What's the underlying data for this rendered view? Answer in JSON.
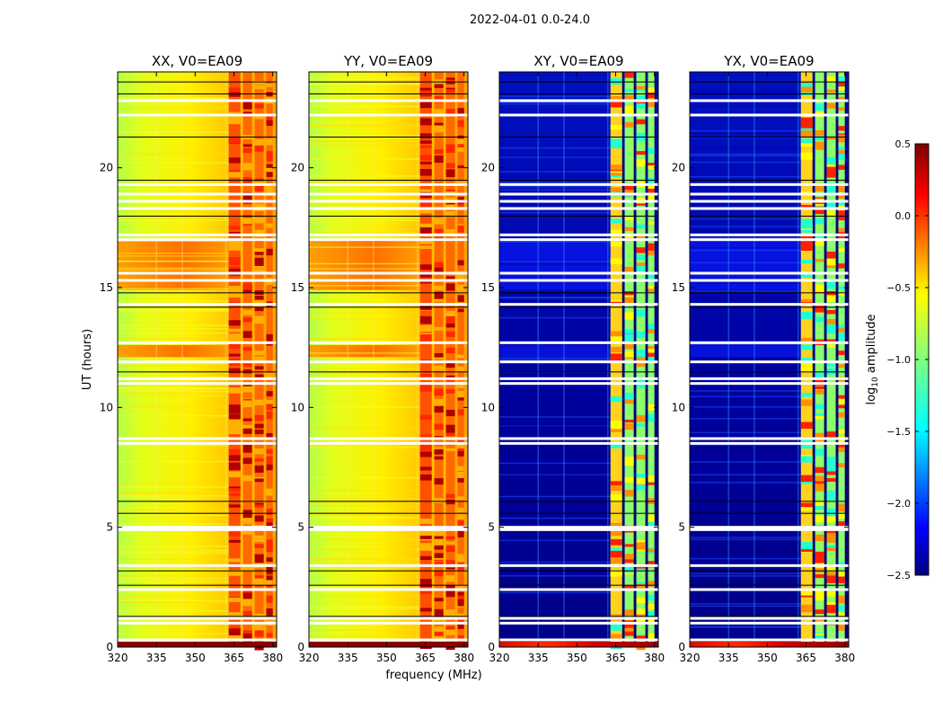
{
  "chart_data": {
    "type": "heatmap",
    "suptitle": "2022-04-01 0.0-24.0",
    "xlabel": "frequency (MHz)",
    "ylabel": "UT (hours)",
    "x_range": [
      320,
      381.5
    ],
    "y_range": [
      0,
      24
    ],
    "x_ticks": [
      320,
      335,
      350,
      365,
      380
    ],
    "y_ticks": [
      0,
      5,
      10,
      15,
      20
    ],
    "panels": [
      {
        "title": "XX, V0=EA09",
        "kind": "parallel"
      },
      {
        "title": "YY, V0=EA09",
        "kind": "parallel"
      },
      {
        "title": "XY, V0=EA09",
        "kind": "cross"
      },
      {
        "title": "YX, V0=EA09",
        "kind": "cross"
      }
    ],
    "bright_band_hours": [
      [
        12.1,
        12.6
      ],
      [
        14.9,
        17.0
      ]
    ],
    "gap_hours_white": [
      0.3,
      1.0,
      1.2,
      2.4,
      3.4,
      4.9,
      5.0,
      8.5,
      8.7,
      11.0,
      11.2,
      11.9,
      12.7,
      14.3,
      15.3,
      15.6,
      17.0,
      17.2,
      18.3,
      18.6,
      18.9,
      19.3,
      22.2,
      22.8
    ],
    "gap_hours_dark": [
      1.3,
      2.6,
      3.2,
      5.6,
      6.1,
      11.5,
      14.2,
      14.8,
      18.0,
      19.5,
      21.3,
      23.1,
      23.6
    ],
    "colorbar": {
      "label": "log",
      "label_sub": "10",
      "label_rest": " amplitude",
      "min": -2.5,
      "max": 0.5,
      "ticks": [
        "0.5",
        "0.0",
        "−0.5",
        "−1.0",
        "−1.5",
        "−2.0",
        "−2.5"
      ]
    }
  }
}
